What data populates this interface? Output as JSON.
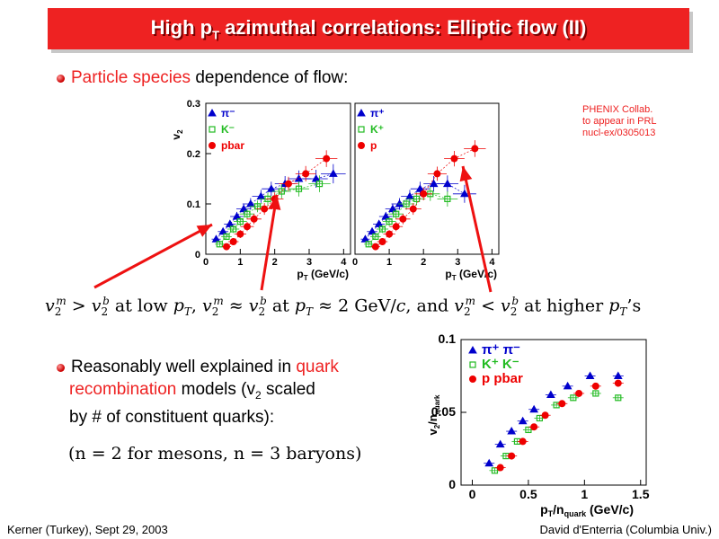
{
  "title": {
    "main": "High p",
    "sub": "T",
    "rest": " azimuthal correlations: Elliptic flow (II)"
  },
  "bullet1": {
    "highlight": "Particle species",
    "rest": " dependence of flow:"
  },
  "collab_note": [
    "PHENIX Collab.",
    "to appear in PRL",
    "nucl-ex/0305013"
  ],
  "equation": {
    "t1": "at low",
    "t2": "at",
    "t3": "≈ 2 GeV/",
    "t4": ", and",
    "t5": "at higher",
    "t6": "’s"
  },
  "bullet2": {
    "line1_a": "Reasonably well explained in ",
    "line1_b": "quark",
    "line2_a": "recombination",
    "line2_b": " models (v",
    "line2_sub": "2",
    "line2_c": " scaled",
    "line3": "by # of constituent quarks):"
  },
  "parenthetical": "(n = 2 for mesons, n = 3 baryons)",
  "footer": {
    "left": "Kerner (Turkey), Sept 29, 2003",
    "right": "David d'Enterria (Columbia Univ.)"
  },
  "colors": {
    "accent": "#ee2222",
    "blue": "#0000cc",
    "green": "#22bb22",
    "red": "#ee0000"
  },
  "chart_data": [
    {
      "type": "scatter",
      "panel": "left",
      "ylabel": "v2",
      "xlabel": "pT (GeV/c)",
      "xlim": [
        0,
        4.2
      ],
      "ylim": [
        0,
        0.3
      ],
      "xticks": [
        "0",
        "1",
        "2",
        "3",
        "4"
      ],
      "yticks": [
        "0",
        "0.1",
        "0.2",
        "0.3"
      ],
      "series": [
        {
          "name": "π⁻",
          "color": "#0000cc",
          "marker": "triangle",
          "x": [
            0.3,
            0.5,
            0.7,
            0.9,
            1.1,
            1.3,
            1.6,
            1.9,
            2.3,
            2.7,
            3.2,
            3.7
          ],
          "y": [
            0.03,
            0.045,
            0.06,
            0.075,
            0.09,
            0.1,
            0.115,
            0.13,
            0.14,
            0.15,
            0.15,
            0.16
          ]
        },
        {
          "name": "K⁻",
          "color": "#22bb22",
          "marker": "square",
          "x": [
            0.4,
            0.6,
            0.8,
            1.0,
            1.2,
            1.5,
            1.8,
            2.2,
            2.7,
            3.3
          ],
          "y": [
            0.02,
            0.035,
            0.05,
            0.065,
            0.08,
            0.095,
            0.11,
            0.125,
            0.13,
            0.14
          ]
        },
        {
          "name": "pbar",
          "color": "#ee0000",
          "marker": "circle",
          "x": [
            0.6,
            0.8,
            1.0,
            1.2,
            1.4,
            1.7,
            2.0,
            2.4,
            2.9,
            3.5
          ],
          "y": [
            0.015,
            0.025,
            0.04,
            0.055,
            0.07,
            0.09,
            0.11,
            0.14,
            0.16,
            0.19
          ]
        }
      ]
    },
    {
      "type": "scatter",
      "panel": "right",
      "xlabel": "pT (GeV/c)",
      "xlim": [
        0,
        4.2
      ],
      "ylim": [
        0,
        0.3
      ],
      "xticks": [
        "0",
        "1",
        "2",
        "3",
        "4"
      ],
      "series": [
        {
          "name": "π⁺",
          "color": "#0000cc",
          "marker": "triangle",
          "x": [
            0.3,
            0.5,
            0.7,
            0.9,
            1.1,
            1.3,
            1.6,
            1.9,
            2.3,
            2.7,
            3.2
          ],
          "y": [
            0.03,
            0.045,
            0.06,
            0.075,
            0.09,
            0.1,
            0.115,
            0.13,
            0.14,
            0.14,
            0.12
          ]
        },
        {
          "name": "K⁺",
          "color": "#22bb22",
          "marker": "square",
          "x": [
            0.4,
            0.6,
            0.8,
            1.0,
            1.2,
            1.5,
            1.8,
            2.2,
            2.7
          ],
          "y": [
            0.02,
            0.035,
            0.05,
            0.065,
            0.08,
            0.1,
            0.11,
            0.12,
            0.11
          ]
        },
        {
          "name": "p",
          "color": "#ee0000",
          "marker": "circle",
          "x": [
            0.6,
            0.8,
            1.0,
            1.2,
            1.4,
            1.7,
            2.0,
            2.4,
            2.9,
            3.5
          ],
          "y": [
            0.015,
            0.025,
            0.04,
            0.055,
            0.07,
            0.09,
            0.12,
            0.16,
            0.19,
            0.21
          ]
        }
      ]
    },
    {
      "type": "scatter",
      "panel": "scaled",
      "ylabel": "v2/nquark",
      "xlabel": "pT/nquark (GeV/c)",
      "xlim": [
        -0.1,
        1.55
      ],
      "ylim": [
        0,
        0.1
      ],
      "xticks": [
        "0",
        "0.5",
        "1",
        "1.5"
      ],
      "yticks": [
        "0",
        "0.05",
        "0.1"
      ],
      "series": [
        {
          "name": "π⁺ π⁻",
          "color": "#0000cc",
          "marker": "triangle",
          "x": [
            0.15,
            0.25,
            0.35,
            0.45,
            0.55,
            0.7,
            0.85,
            1.05,
            1.3
          ],
          "y": [
            0.015,
            0.028,
            0.037,
            0.044,
            0.052,
            0.062,
            0.068,
            0.075,
            0.075
          ]
        },
        {
          "name": "K⁺ K⁻",
          "color": "#22bb22",
          "marker": "square",
          "x": [
            0.2,
            0.3,
            0.4,
            0.5,
            0.6,
            0.75,
            0.9,
            1.1,
            1.3
          ],
          "y": [
            0.01,
            0.02,
            0.03,
            0.038,
            0.046,
            0.055,
            0.06,
            0.063,
            0.06
          ]
        },
        {
          "name": "p  pbar",
          "color": "#ee0000",
          "marker": "circle",
          "x": [
            0.25,
            0.35,
            0.45,
            0.55,
            0.65,
            0.8,
            0.95,
            1.1,
            1.3
          ],
          "y": [
            0.012,
            0.02,
            0.03,
            0.04,
            0.048,
            0.056,
            0.063,
            0.068,
            0.07
          ]
        }
      ]
    }
  ]
}
